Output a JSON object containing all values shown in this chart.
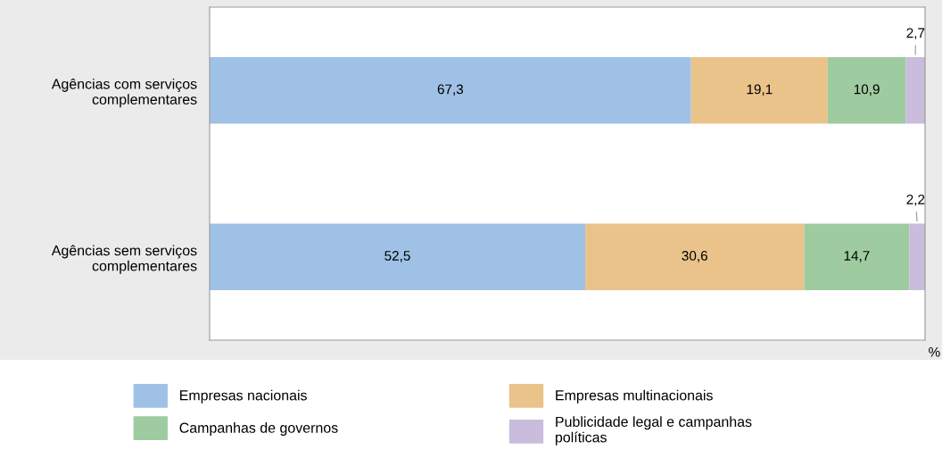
{
  "chart_data": {
    "type": "bar",
    "orientation": "horizontal",
    "stacked": true,
    "xlabel": "%",
    "categories": [
      "Agências com serviços\ncomplementares",
      "Agências sem serviços\ncomplementares"
    ],
    "xlim": [
      0,
      100
    ],
    "tick_labels": "y",
    "grid": false,
    "legend": "bottom",
    "series": [
      {
        "name": "Empresas nacionais",
        "color": "#9fc1e6",
        "values": [
          67.3,
          52.5
        ],
        "value_labels": [
          "67,3",
          "52,5"
        ]
      },
      {
        "name": "Empresas multinacionais",
        "color": "#eac38a",
        "values": [
          19.1,
          30.6
        ],
        "value_labels": [
          "19,1",
          "30,6"
        ]
      },
      {
        "name": "Campanhas de governos",
        "color": "#9ecb9f",
        "values": [
          10.9,
          14.7
        ],
        "value_labels": [
          "10,9",
          "14,7"
        ]
      },
      {
        "name": "Publicidade legal e campanhas\npolíticas",
        "color": "#c9bcdc",
        "values": [
          2.7,
          2.2
        ],
        "value_labels": [
          "2,7",
          "2,2"
        ]
      }
    ]
  }
}
